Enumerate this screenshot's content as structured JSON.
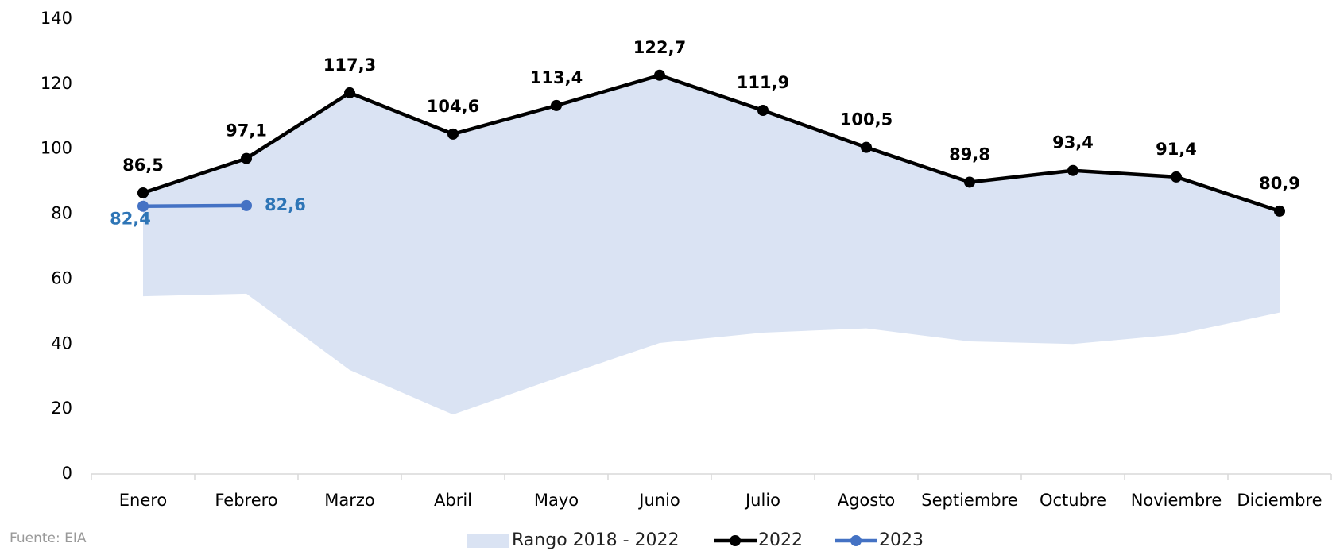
{
  "chart_data": {
    "type": "line",
    "categories": [
      "Enero",
      "Febrero",
      "Marzo",
      "Abril",
      "Mayo",
      "Junio",
      "Julio",
      "Agosto",
      "Septiembre",
      "Octubre",
      "Noviembre",
      "Diciembre"
    ],
    "range": {
      "name": "Rango 2018 - 2022",
      "color": "#dae3f3",
      "low": [
        54.7,
        55.5,
        32,
        18.3,
        29.5,
        40.3,
        43.5,
        44.8,
        40.8,
        40,
        42.9,
        49.7
      ],
      "high": [
        86.5,
        97.1,
        117.3,
        104.6,
        113.4,
        122.7,
        111.9,
        100.5,
        89.8,
        93.4,
        91.4,
        80.9
      ]
    },
    "series": [
      {
        "name": "2022",
        "color": "#000000",
        "label_color": "#000000",
        "values": [
          86.5,
          97.1,
          117.3,
          104.6,
          113.4,
          122.7,
          111.9,
          100.5,
          89.8,
          93.4,
          91.4,
          80.9
        ],
        "value_labels": [
          "86,5",
          "97,1",
          "117,3",
          "104,6",
          "113,4",
          "122,7",
          "111,9",
          "100,5",
          "89,8",
          "93,4",
          "91,4",
          "80,9"
        ]
      },
      {
        "name": "2023",
        "color": "#4472c4",
        "label_color": "#2e75b6",
        "values": [
          82.4,
          82.6,
          null,
          null,
          null,
          null,
          null,
          null,
          null,
          null,
          null,
          null
        ],
        "value_labels": [
          "82,4",
          "82,6",
          null,
          null,
          null,
          null,
          null,
          null,
          null,
          null,
          null,
          null
        ]
      }
    ],
    "ylim": [
      0,
      140
    ],
    "yticks": [
      0,
      20,
      40,
      60,
      80,
      100,
      120,
      140
    ],
    "source": "Fuente: EIA"
  }
}
